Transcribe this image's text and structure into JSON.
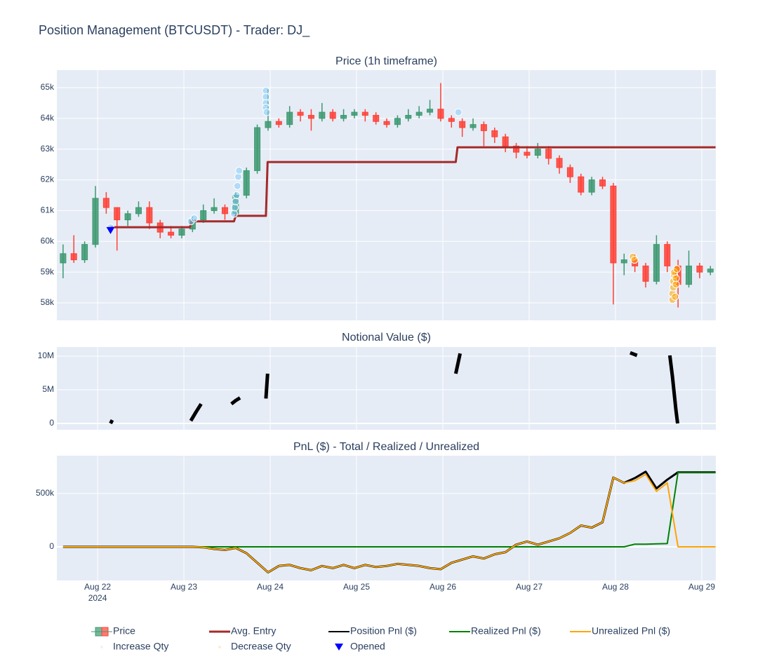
{
  "title": "Position Management (BTCUSDT) - Trader: DJ_",
  "chart_data": [
    {
      "type": "candlestick",
      "title": "Price (1h timeframe)",
      "name": "Price",
      "increasing_color": "#3D9970",
      "decreasing_color": "#FF4136",
      "x": [
        21.6,
        21.725,
        21.85,
        21.975,
        22.1,
        22.225,
        22.35,
        22.475,
        22.6,
        22.725,
        22.85,
        22.975,
        23.1,
        23.225,
        23.35,
        23.475,
        23.6,
        23.725,
        23.85,
        23.975,
        24.1,
        24.225,
        24.35,
        24.475,
        24.6,
        24.725,
        24.85,
        24.975,
        25.1,
        25.225,
        25.35,
        25.475,
        25.6,
        25.725,
        25.85,
        25.975,
        26.1,
        26.225,
        26.35,
        26.475,
        26.6,
        26.725,
        26.85,
        26.975,
        27.1,
        27.225,
        27.35,
        27.475,
        27.6,
        27.725,
        27.85,
        27.975,
        28.1,
        28.225,
        28.35,
        28.475,
        28.6,
        28.725,
        28.85,
        28.975,
        29.1
      ],
      "open": [
        59300,
        59600,
        59400,
        59900,
        61400,
        61100,
        60700,
        60900,
        61100,
        60600,
        60300,
        60200,
        60400,
        60700,
        61000,
        61100,
        60900,
        61500,
        62300,
        63700,
        63900,
        63800,
        64200,
        64100,
        64000,
        64200,
        64000,
        64100,
        64200,
        64100,
        63900,
        63800,
        64000,
        64100,
        64200,
        64300,
        64000,
        63900,
        63700,
        63800,
        63600,
        63400,
        63100,
        62900,
        62800,
        63000,
        62700,
        62400,
        62100,
        61600,
        62000,
        61800,
        59300,
        59400,
        59200,
        58700,
        59900,
        59200,
        58600,
        59200,
        59000
      ],
      "high": [
        59900,
        60200,
        60000,
        61800,
        61600,
        61100,
        61000,
        61300,
        61300,
        60700,
        60500,
        60500,
        60800,
        61200,
        61400,
        61200,
        61600,
        62400,
        63800,
        64950,
        64000,
        64400,
        64300,
        64300,
        64500,
        64300,
        64300,
        64300,
        64300,
        64200,
        64000,
        64100,
        64300,
        64400,
        64600,
        65150,
        64100,
        64000,
        64000,
        63900,
        63700,
        63500,
        63200,
        63100,
        63200,
        63100,
        62800,
        62500,
        62200,
        62100,
        62100,
        61900,
        59600,
        59600,
        59300,
        60200,
        60000,
        59400,
        59700,
        59300,
        59200
      ],
      "low": [
        58800,
        59300,
        59300,
        59800,
        60900,
        59700,
        60500,
        60800,
        60400,
        60100,
        60100,
        60100,
        60300,
        60600,
        60900,
        60700,
        60800,
        61400,
        62200,
        63600,
        63700,
        63700,
        63900,
        63600,
        63900,
        63900,
        63900,
        64000,
        63900,
        63800,
        63700,
        63700,
        63900,
        64000,
        64100,
        63900,
        63700,
        63400,
        63600,
        63100,
        63200,
        62900,
        62700,
        62700,
        62700,
        62500,
        62200,
        61900,
        61500,
        61500,
        61700,
        57950,
        58900,
        59000,
        58500,
        58600,
        59000,
        57850,
        58500,
        58800,
        58900
      ],
      "close": [
        59600,
        59400,
        59900,
        61400,
        61100,
        60700,
        60900,
        61100,
        60600,
        60300,
        60200,
        60400,
        60700,
        61000,
        61100,
        60900,
        61500,
        62300,
        63700,
        63900,
        63800,
        64200,
        64100,
        64000,
        64200,
        64000,
        64100,
        64200,
        64100,
        63900,
        63800,
        64000,
        64100,
        64200,
        64300,
        64000,
        63900,
        63700,
        63800,
        63600,
        63400,
        63100,
        62900,
        62800,
        63000,
        62700,
        62400,
        62100,
        61600,
        62000,
        61800,
        59300,
        59400,
        59200,
        58700,
        59900,
        59200,
        58600,
        59200,
        59000,
        59100
      ],
      "overlays": [
        {
          "type": "line",
          "name": "Avg. Entry",
          "color": "#A52A2A",
          "x": [
            22.15,
            23.07,
            23.09,
            23.58,
            23.6,
            23.95,
            23.97,
            26.15,
            26.17,
            29.16
          ],
          "values": [
            60460,
            60460,
            60650,
            60650,
            60830,
            60830,
            62580,
            62580,
            63060,
            63060
          ]
        },
        {
          "type": "scatter",
          "name": "Increase Qty",
          "color": "#87CEFA",
          "x": [
            22.15,
            23.08,
            23.12,
            23.58,
            23.59,
            23.6,
            23.61,
            23.62,
            23.63,
            23.64,
            23.95,
            23.95,
            23.95,
            23.95,
            23.96,
            26.18
          ],
          "values": [
            60450,
            60650,
            60750,
            60900,
            61100,
            61300,
            61500,
            61800,
            62100,
            62300,
            64900,
            64700,
            64500,
            64350,
            64200,
            64200
          ]
        },
        {
          "type": "scatter",
          "name": "Decrease Qty",
          "color": "#FFA500",
          "x": [
            28.2,
            28.22,
            28.66,
            28.66,
            28.67,
            28.67,
            28.68,
            28.68,
            28.69,
            28.7,
            28.7,
            28.71
          ],
          "values": [
            59500,
            59400,
            58100,
            58300,
            58500,
            58700,
            58900,
            59000,
            58200,
            58600,
            58800,
            59100
          ]
        },
        {
          "type": "triangle",
          "name": "Opened",
          "color": "#0000FF",
          "x": [
            22.15
          ],
          "values": [
            60350
          ]
        }
      ],
      "ylim": [
        57430,
        65570
      ],
      "yticks": [
        {
          "value": 58000,
          "label": "58k"
        },
        {
          "value": 59000,
          "label": "59k"
        },
        {
          "value": 60000,
          "label": "60k"
        },
        {
          "value": 61000,
          "label": "61k"
        },
        {
          "value": 62000,
          "label": "62k"
        },
        {
          "value": 63000,
          "label": "63k"
        },
        {
          "value": 64000,
          "label": "64k"
        },
        {
          "value": 65000,
          "label": "65k"
        }
      ],
      "grid": true
    },
    {
      "type": "line",
      "title": "Notional Value ($)",
      "x": [
        22.15,
        22.17,
        22.5,
        23.08,
        23.14,
        23.2,
        23.4,
        23.55,
        23.6,
        23.65,
        23.8,
        23.95,
        23.97,
        24.5,
        26.15,
        26.2,
        27,
        28.17,
        28.25,
        28.5,
        28.63,
        28.66,
        28.7,
        28.72
      ],
      "series": [
        {
          "color": "#000000",
          "values": [
            0,
            500000,
            null,
            400000,
            1700000,
            2900000,
            null,
            2900000,
            3400000,
            3800000,
            null,
            3700000,
            7400000,
            null,
            7400000,
            10400000,
            null,
            10500000,
            10100000,
            null,
            10100000,
            7000000,
            2000000,
            0
          ]
        }
      ],
      "ylim": [
        -937500,
        11354000
      ],
      "yticks": [
        0,
        {
          "value": 5000000,
          "label": "5M"
        },
        {
          "value": 10000000,
          "label": "10M"
        }
      ],
      "grid": true
    },
    {
      "type": "line",
      "title": "PnL ($) - Total / Realized / Unrealized",
      "x": [
        21.6,
        21.725,
        21.85,
        21.975,
        22.1,
        22.225,
        22.35,
        22.475,
        22.6,
        22.725,
        22.85,
        22.975,
        23.1,
        23.225,
        23.35,
        23.475,
        23.6,
        23.725,
        23.85,
        23.975,
        24.1,
        24.225,
        24.35,
        24.475,
        24.6,
        24.725,
        24.85,
        24.975,
        25.1,
        25.225,
        25.35,
        25.475,
        25.6,
        25.725,
        25.85,
        25.975,
        26.1,
        26.225,
        26.35,
        26.475,
        26.6,
        26.725,
        26.85,
        26.975,
        27.1,
        27.225,
        27.35,
        27.475,
        27.6,
        27.725,
        27.85,
        27.975,
        28.1,
        28.225,
        28.35,
        28.475,
        28.6,
        28.725,
        28.85,
        28.975,
        29.1,
        29.16
      ],
      "series": [
        {
          "name": "Position Pnl ($)",
          "color": "#000000",
          "values": [
            0,
            0,
            0,
            0,
            0,
            0,
            0,
            0,
            0,
            0,
            0,
            0,
            0,
            -5000,
            -20000,
            -30000,
            -10000,
            -60000,
            -150000,
            -240000,
            -180000,
            -170000,
            -200000,
            -220000,
            -180000,
            -200000,
            -170000,
            -200000,
            -170000,
            -190000,
            -180000,
            -160000,
            -170000,
            -180000,
            -200000,
            -210000,
            -150000,
            -120000,
            -90000,
            -110000,
            -70000,
            -50000,
            20000,
            50000,
            20000,
            50000,
            80000,
            130000,
            200000,
            180000,
            230000,
            650000,
            600000,
            645000,
            705000,
            548000,
            630000,
            700000,
            700000,
            700000,
            700000,
            700000
          ]
        },
        {
          "name": "Realized Pnl ($)",
          "color": "#008000",
          "values": [
            0,
            0,
            0,
            0,
            0,
            0,
            0,
            0,
            0,
            0,
            0,
            0,
            0,
            0,
            0,
            0,
            0,
            0,
            0,
            0,
            0,
            0,
            0,
            0,
            0,
            0,
            0,
            0,
            0,
            0,
            0,
            0,
            0,
            0,
            0,
            0,
            0,
            0,
            0,
            0,
            0,
            0,
            0,
            0,
            0,
            0,
            0,
            0,
            0,
            0,
            0,
            0,
            0,
            25000,
            25000,
            28000,
            30000,
            700000,
            700000,
            700000,
            700000,
            700000
          ]
        },
        {
          "name": "Unrealized Pnl ($)",
          "color": "#FFA500",
          "values": [
            0,
            0,
            0,
            0,
            0,
            0,
            0,
            0,
            0,
            0,
            0,
            0,
            0,
            -5000,
            -20000,
            -30000,
            -10000,
            -60000,
            -150000,
            -240000,
            -180000,
            -170000,
            -200000,
            -220000,
            -180000,
            -200000,
            -170000,
            -200000,
            -170000,
            -190000,
            -180000,
            -160000,
            -170000,
            -180000,
            -200000,
            -210000,
            -150000,
            -120000,
            -90000,
            -110000,
            -70000,
            -50000,
            20000,
            50000,
            20000,
            50000,
            80000,
            130000,
            200000,
            180000,
            230000,
            650000,
            600000,
            620000,
            680000,
            520000,
            600000,
            0,
            0,
            0,
            0,
            0
          ]
        }
      ],
      "xlim": [
        21.528,
        29.163
      ],
      "xticks": [
        {
          "value": 22,
          "label": "Aug 22"
        },
        {
          "value": 23,
          "label": "Aug 23"
        },
        {
          "value": 24,
          "label": "Aug 24"
        },
        {
          "value": 25,
          "label": "Aug 25"
        },
        {
          "value": 26,
          "label": "Aug 26"
        },
        {
          "value": 27,
          "label": "Aug 27"
        },
        {
          "value": 28,
          "label": "Aug 28"
        },
        {
          "value": 29,
          "label": "Aug 29"
        }
      ],
      "x_year_label": "2024",
      "ylim": [
        -316000,
        855000
      ],
      "yticks": [
        0,
        {
          "value": 500000,
          "label": "500k"
        }
      ],
      "grid": true
    }
  ]
}
